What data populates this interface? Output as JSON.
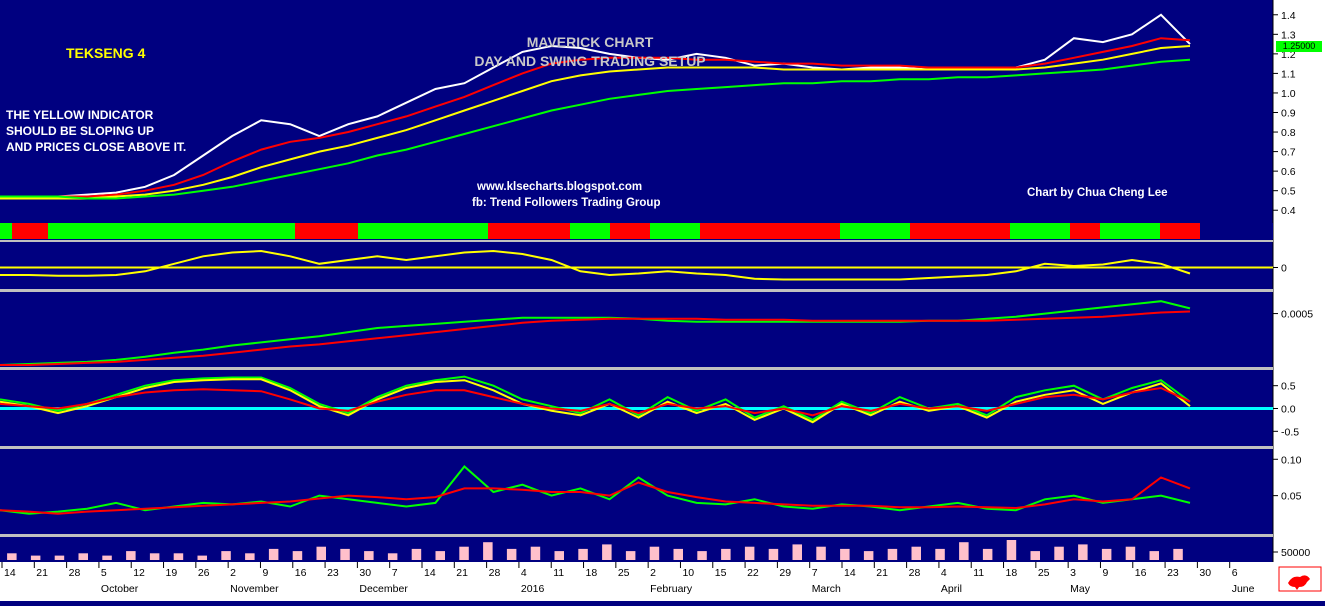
{
  "header": {
    "ticker": "TEKSENG 4",
    "title_line1": "MAVERICK CHART",
    "title_line2": "DAY AND SWING TRADING SETUP",
    "note_lines": [
      "THE YELLOW INDICATOR",
      "SHOULD BE SLOPING UP",
      "AND PRICES CLOSE ABOVE IT."
    ],
    "url": "www.klsecharts.blogspot.com",
    "facebook": "fb: Trend Followers Trading Group",
    "credit": "Chart by Chua Cheng Lee",
    "last_price": "1.25000"
  },
  "colors": {
    "background": "#000080",
    "axis_bg": "#ffffff",
    "up": "#00ff00",
    "down": "#ff0000",
    "yellow": "#ffff00",
    "white": "#ffffff",
    "zero_line": "#00ffff",
    "volume": "#ffc0cb"
  },
  "chart_data": [
    {
      "type": "line",
      "panel": "price",
      "ylim": [
        0.35,
        1.45
      ],
      "yticks": [
        "1.4",
        "1.3",
        "1.2",
        "1.1",
        "1.0",
        "0.9",
        "0.8",
        "0.7",
        "0.6",
        "0.5",
        "0.4"
      ],
      "series": [
        {
          "color": "#ffffff",
          "values": [
            0.47,
            0.47,
            0.47,
            0.48,
            0.49,
            0.52,
            0.58,
            0.68,
            0.78,
            0.86,
            0.84,
            0.78,
            0.84,
            0.88,
            0.95,
            1.02,
            1.05,
            1.13,
            1.21,
            1.24,
            1.23,
            1.2,
            1.18,
            1.17,
            1.2,
            1.18,
            1.14,
            1.15,
            1.13,
            1.12,
            1.13,
            1.13,
            1.12,
            1.12,
            1.13,
            1.13,
            1.17,
            1.28,
            1.26,
            1.3,
            1.4,
            1.25
          ]
        },
        {
          "color": "#ff0000",
          "values": [
            0.47,
            0.47,
            0.47,
            0.47,
            0.48,
            0.5,
            0.53,
            0.58,
            0.65,
            0.71,
            0.75,
            0.77,
            0.8,
            0.84,
            0.88,
            0.93,
            0.98,
            1.04,
            1.1,
            1.15,
            1.17,
            1.18,
            1.18,
            1.18,
            1.17,
            1.17,
            1.16,
            1.15,
            1.15,
            1.14,
            1.14,
            1.14,
            1.13,
            1.13,
            1.13,
            1.13,
            1.15,
            1.18,
            1.21,
            1.24,
            1.28,
            1.27
          ]
        },
        {
          "color": "#ffff00",
          "values": [
            0.46,
            0.46,
            0.46,
            0.46,
            0.47,
            0.48,
            0.5,
            0.53,
            0.57,
            0.62,
            0.66,
            0.7,
            0.73,
            0.77,
            0.81,
            0.86,
            0.91,
            0.96,
            1.01,
            1.06,
            1.09,
            1.11,
            1.12,
            1.13,
            1.13,
            1.13,
            1.13,
            1.12,
            1.12,
            1.12,
            1.12,
            1.12,
            1.12,
            1.12,
            1.12,
            1.12,
            1.13,
            1.15,
            1.17,
            1.2,
            1.23,
            1.24
          ]
        },
        {
          "color": "#00ff00",
          "values": [
            0.47,
            0.47,
            0.47,
            0.46,
            0.46,
            0.47,
            0.48,
            0.5,
            0.52,
            0.55,
            0.58,
            0.61,
            0.64,
            0.68,
            0.71,
            0.75,
            0.79,
            0.83,
            0.87,
            0.91,
            0.94,
            0.97,
            0.99,
            1.01,
            1.02,
            1.03,
            1.04,
            1.05,
            1.05,
            1.06,
            1.06,
            1.07,
            1.07,
            1.08,
            1.08,
            1.09,
            1.1,
            1.11,
            1.12,
            1.14,
            1.16,
            1.17
          ]
        }
      ]
    },
    {
      "type": "line",
      "panel": "oscillator",
      "ylim": [
        -0.3,
        0.3
      ],
      "yticks": [
        "0"
      ],
      "series": [
        {
          "color": "#ffff00",
          "values": [
            -0.1,
            -0.1,
            -0.11,
            -0.11,
            -0.1,
            -0.05,
            0.05,
            0.15,
            0.2,
            0.22,
            0.15,
            0.05,
            0.1,
            0.15,
            0.1,
            0.15,
            0.2,
            0.22,
            0.18,
            0.1,
            -0.05,
            -0.1,
            -0.08,
            -0.05,
            -0.08,
            -0.1,
            -0.15,
            -0.16,
            -0.16,
            -0.16,
            -0.16,
            -0.16,
            -0.14,
            -0.12,
            -0.1,
            -0.05,
            0.05,
            0.02,
            0.04,
            0.1,
            0.05,
            -0.08
          ]
        }
      ]
    },
    {
      "type": "line",
      "panel": "momentum",
      "ylim": [
        0,
        0.0007
      ],
      "yticks": [
        "0.0005"
      ],
      "series": [
        {
          "color": "#00ff00",
          "values": [
            0,
            1e-05,
            2e-05,
            3e-05,
            5e-05,
            8e-05,
            0.00012,
            0.00015,
            0.00019,
            0.00022,
            0.00025,
            0.00028,
            0.00032,
            0.00036,
            0.00038,
            0.0004,
            0.00042,
            0.00044,
            0.00046,
            0.00046,
            0.00046,
            0.00046,
            0.00045,
            0.00043,
            0.00042,
            0.00042,
            0.00042,
            0.00042,
            0.00042,
            0.00042,
            0.00042,
            0.00042,
            0.00043,
            0.00043,
            0.00045,
            0.00047,
            0.0005,
            0.00053,
            0.00056,
            0.00059,
            0.00062,
            0.00055
          ]
        },
        {
          "color": "#ff0000",
          "values": [
            0,
            0,
            1e-05,
            2e-05,
            3e-05,
            5e-05,
            7e-05,
            9e-05,
            0.00012,
            0.00015,
            0.00018,
            0.0002,
            0.00023,
            0.00026,
            0.00029,
            0.00032,
            0.00035,
            0.00038,
            0.00041,
            0.00043,
            0.00044,
            0.00045,
            0.00045,
            0.00045,
            0.00045,
            0.00044,
            0.00044,
            0.00044,
            0.00043,
            0.00043,
            0.00043,
            0.00043,
            0.00043,
            0.00043,
            0.00043,
            0.00044,
            0.00045,
            0.00046,
            0.00047,
            0.00049,
            0.00051,
            0.00052
          ]
        }
      ]
    },
    {
      "type": "line",
      "panel": "stochastic",
      "ylim": [
        -0.8,
        0.8
      ],
      "yticks": [
        "0.5",
        "0.0",
        "-0.5"
      ],
      "series": [
        {
          "color": "#00ff00",
          "values": [
            0.2,
            0.1,
            -0.05,
            0.1,
            0.3,
            0.5,
            0.62,
            0.66,
            0.68,
            0.68,
            0.45,
            0.1,
            -0.1,
            0.25,
            0.5,
            0.62,
            0.7,
            0.5,
            0.2,
            0.05,
            -0.1,
            0.2,
            -0.15,
            0.25,
            -0.05,
            0.2,
            -0.2,
            0.05,
            -0.25,
            0.15,
            -0.1,
            0.25,
            0.0,
            0.1,
            -0.15,
            0.25,
            0.4,
            0.5,
            0.2,
            0.45,
            0.62,
            0.15
          ]
        },
        {
          "color": "#ffff00",
          "values": [
            0.15,
            0.05,
            -0.1,
            0.05,
            0.25,
            0.45,
            0.58,
            0.62,
            0.64,
            0.64,
            0.4,
            0.05,
            -0.15,
            0.2,
            0.45,
            0.58,
            0.62,
            0.4,
            0.1,
            -0.05,
            -0.15,
            0.1,
            -0.2,
            0.15,
            -0.1,
            0.1,
            -0.25,
            0.0,
            -0.3,
            0.1,
            -0.15,
            0.15,
            -0.05,
            0.05,
            -0.2,
            0.15,
            0.3,
            0.4,
            0.1,
            0.35,
            0.55,
            0.05
          ]
        },
        {
          "color": "#ff0000",
          "values": [
            0.1,
            0.05,
            0.0,
            0.1,
            0.25,
            0.35,
            0.4,
            0.42,
            0.4,
            0.38,
            0.2,
            0.0,
            -0.05,
            0.15,
            0.3,
            0.4,
            0.4,
            0.25,
            0.1,
            0.0,
            -0.05,
            0.1,
            -0.1,
            0.1,
            0.0,
            0.05,
            -0.1,
            0.0,
            -0.15,
            0.05,
            -0.05,
            0.1,
            0.0,
            0.05,
            -0.05,
            0.1,
            0.25,
            0.3,
            0.2,
            0.35,
            0.45,
            0.15
          ]
        }
      ]
    },
    {
      "type": "line",
      "panel": "volatility",
      "ylim": [
        0.0,
        0.11
      ],
      "yticks": [
        "0.10",
        "0.05"
      ],
      "series": [
        {
          "color": "#00ff00",
          "values": [
            0.03,
            0.025,
            0.028,
            0.032,
            0.04,
            0.03,
            0.035,
            0.04,
            0.038,
            0.042,
            0.035,
            0.05,
            0.045,
            0.04,
            0.035,
            0.04,
            0.09,
            0.055,
            0.065,
            0.05,
            0.06,
            0.045,
            0.075,
            0.05,
            0.04,
            0.038,
            0.045,
            0.035,
            0.032,
            0.038,
            0.035,
            0.03,
            0.035,
            0.04,
            0.032,
            0.03,
            0.045,
            0.05,
            0.04,
            0.045,
            0.05,
            0.04
          ]
        },
        {
          "color": "#ff0000",
          "values": [
            0.03,
            0.028,
            0.025,
            0.028,
            0.03,
            0.032,
            0.034,
            0.036,
            0.038,
            0.04,
            0.042,
            0.046,
            0.05,
            0.048,
            0.045,
            0.048,
            0.06,
            0.06,
            0.058,
            0.055,
            0.055,
            0.05,
            0.068,
            0.055,
            0.048,
            0.042,
            0.04,
            0.038,
            0.036,
            0.036,
            0.036,
            0.034,
            0.034,
            0.035,
            0.034,
            0.033,
            0.038,
            0.045,
            0.042,
            0.045,
            0.075,
            0.06
          ]
        }
      ]
    },
    {
      "type": "bar",
      "panel": "volume",
      "yticks": [
        "50000"
      ],
      "values": [
        3,
        2,
        2,
        3,
        2,
        4,
        3,
        3,
        2,
        4,
        3,
        5,
        4,
        6,
        5,
        4,
        3,
        5,
        4,
        6,
        8,
        5,
        6,
        4,
        5,
        7,
        4,
        6,
        5,
        4,
        5,
        6,
        5,
        7,
        6,
        5,
        4,
        5,
        6,
        5,
        8,
        5,
        9,
        4,
        6,
        7,
        5,
        6,
        4,
        5
      ]
    }
  ],
  "x_axis": {
    "dates": [
      "14",
      "21",
      "28",
      "5",
      "12",
      "19",
      "26",
      "2",
      "9",
      "16",
      "23",
      "30",
      "7",
      "14",
      "21",
      "28",
      "4",
      "11",
      "18",
      "25",
      "2",
      "10",
      "15",
      "22",
      "29",
      "7",
      "14",
      "21",
      "28",
      "4",
      "11",
      "18",
      "25",
      "3",
      "9",
      "16",
      "23",
      "30",
      "6"
    ],
    "months": [
      "October",
      "November",
      "December",
      "2016",
      "February",
      "March",
      "April",
      "May",
      "June"
    ]
  }
}
